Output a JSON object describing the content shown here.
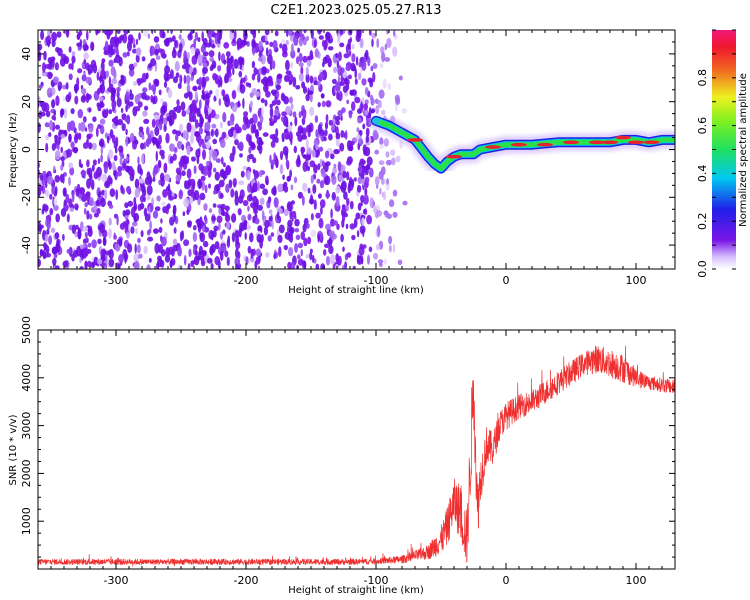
{
  "title": "C2E1.2023.025.05.27.R13",
  "colors": {
    "snr_line": "#ef3030",
    "speckle": "#7a16e8",
    "ridge_outer": "#2020e0",
    "ridge_mid": "#2adf4a",
    "ridge_core": "#e82030"
  },
  "chart_data": [
    {
      "type": "heatmap",
      "title": "",
      "xlabel": "Height of straight line (km)",
      "ylabel": "Frequency (Hz)",
      "xlim": [
        -360,
        130
      ],
      "ylim": [
        -50,
        50
      ],
      "x_ticks": [
        -300,
        -200,
        -100,
        0,
        100
      ],
      "y_ticks": [
        -40,
        -20,
        0,
        20,
        40
      ],
      "colorbar": {
        "label": "Normalized spectral amplitude",
        "range": [
          0.0,
          1.0
        ],
        "ticks": [
          "0.0",
          "0.2",
          "0.4",
          "0.6",
          "0.8"
        ],
        "tick_values": [
          0.0,
          0.2,
          0.4,
          0.6,
          0.8
        ],
        "colormap": "rainbow (white-violet-blue-cyan-green-yellow-red-magenta)"
      },
      "noise_region_x": [
        -360,
        -90
      ],
      "ridge": {
        "x": [
          -100,
          -90,
          -80,
          -70,
          -60,
          -55,
          -50,
          -45,
          -40,
          -35,
          -30,
          -25,
          -20,
          -10,
          0,
          10,
          20,
          40,
          60,
          80,
          90,
          100,
          110,
          120,
          130
        ],
        "y": [
          12,
          10,
          7,
          4,
          -3,
          -6,
          -8,
          -5,
          -3,
          -2,
          -2,
          -2,
          0,
          1,
          2,
          2,
          2,
          3,
          3,
          3,
          4,
          4,
          3,
          4,
          4
        ]
      }
    },
    {
      "type": "line",
      "title": "",
      "xlabel": "Height of straight line (km)",
      "ylabel": "SNR (10 * v/v)",
      "xlim": [
        -360,
        130
      ],
      "ylim": [
        0,
        5000
      ],
      "x_ticks": [
        -300,
        -200,
        -100,
        0,
        100
      ],
      "y_ticks": [
        1000,
        2000,
        3000,
        4000,
        5000
      ],
      "series": [
        {
          "x": [
            -360,
            -300,
            -200,
            -120,
            -100,
            -80,
            -60,
            -50,
            -45,
            -40,
            -35,
            -30,
            -27,
            -25,
            -22,
            -20,
            -15,
            -10,
            -5,
            0,
            10,
            20,
            30,
            40,
            50,
            60,
            70,
            80,
            90,
            100,
            110,
            120,
            130
          ],
          "values": [
            150,
            150,
            150,
            150,
            160,
            200,
            350,
            600,
            900,
            1400,
            1200,
            600,
            2500,
            4000,
            1200,
            1800,
            2600,
            2500,
            3000,
            3200,
            3400,
            3500,
            3700,
            3900,
            4100,
            4300,
            4400,
            4300,
            4200,
            4000,
            3900,
            3850,
            3800
          ],
          "noise_amplitude": [
            60,
            60,
            60,
            60,
            60,
            80,
            150,
            300,
            400,
            500,
            600,
            600,
            900,
            900,
            700,
            500,
            400,
            350,
            300,
            300,
            250,
            250,
            250,
            250,
            250,
            250,
            300,
            300,
            300,
            200,
            150,
            150,
            150
          ]
        }
      ]
    }
  ]
}
